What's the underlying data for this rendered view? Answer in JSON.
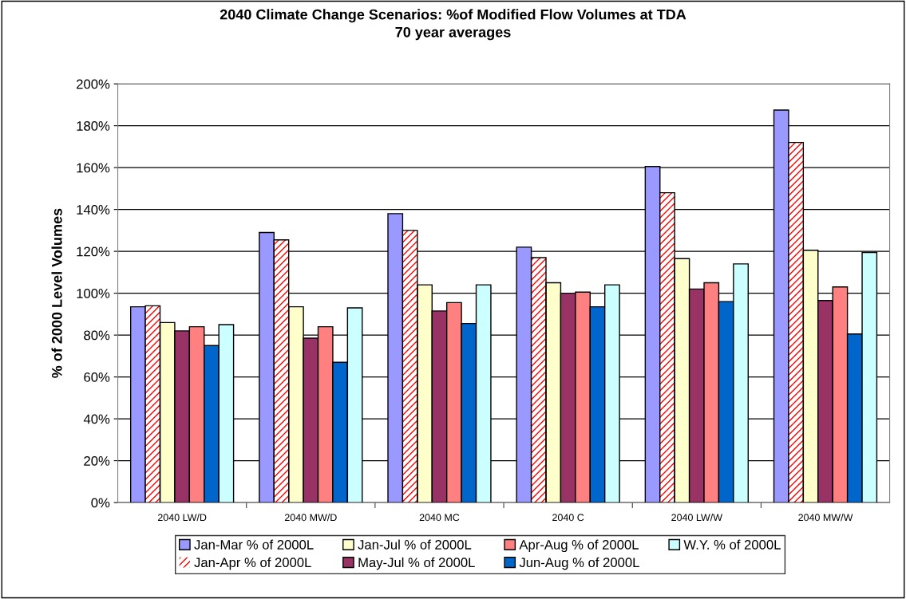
{
  "chart_data": {
    "type": "bar",
    "title": "2040 Climate Change Scenarios: %of Modified Flow Volumes at TDA\n70 year averages",
    "ylabel": "% of 2000 Level Volumes",
    "categories": [
      "2040 LW/D",
      "2040 MW/D",
      "2040 MC",
      "2040 C",
      "2040 LW/W",
      "2040 MW/W"
    ],
    "series": [
      {
        "name": "Jan-Mar % of 2000L",
        "color": "#9999ff",
        "values": [
          93.5,
          129,
          138,
          122,
          160.5,
          187.5
        ]
      },
      {
        "name": "Jan-Apr % of 2000L",
        "color": "#ff0000",
        "values": [
          94,
          125.5,
          130,
          117,
          148,
          172
        ]
      },
      {
        "name": "Jan-Jul % of 2000L",
        "color": "#ffffcc",
        "values": [
          86,
          93.5,
          104,
          105,
          116.5,
          120.5
        ]
      },
      {
        "name": "May-Jul % of 2000L",
        "color": "#993366",
        "values": [
          82,
          78.5,
          91.5,
          100,
          102,
          96.5
        ]
      },
      {
        "name": "Apr-Aug % of 2000L",
        "color": "#ff8080",
        "values": [
          84,
          84,
          95.5,
          100.5,
          105,
          103
        ]
      },
      {
        "name": "Jun-Aug % of 2000L",
        "color": "#0066cc",
        "values": [
          75,
          67,
          85.5,
          93.5,
          96,
          80.5
        ]
      },
      {
        "name": "W.Y. % of 2000L",
        "color": "#ccffff",
        "values": [
          85,
          93,
          104,
          104,
          114,
          119.5
        ]
      }
    ],
    "ylim": [
      0,
      200
    ],
    "yticks": [
      {
        "value": 0,
        "label": "0%"
      },
      {
        "value": 20,
        "label": "20%"
      },
      {
        "value": 40,
        "label": "40%"
      },
      {
        "value": 60,
        "label": "60%"
      },
      {
        "value": 80,
        "label": "80%"
      },
      {
        "value": 100,
        "label": "100%"
      },
      {
        "value": 120,
        "label": "120%"
      },
      {
        "value": 140,
        "label": "140%"
      },
      {
        "value": 160,
        "label": "160%"
      },
      {
        "value": 180,
        "label": "180%"
      },
      {
        "value": 200,
        "label": "200%"
      }
    ],
    "grid": "y",
    "legend": "bottom"
  }
}
